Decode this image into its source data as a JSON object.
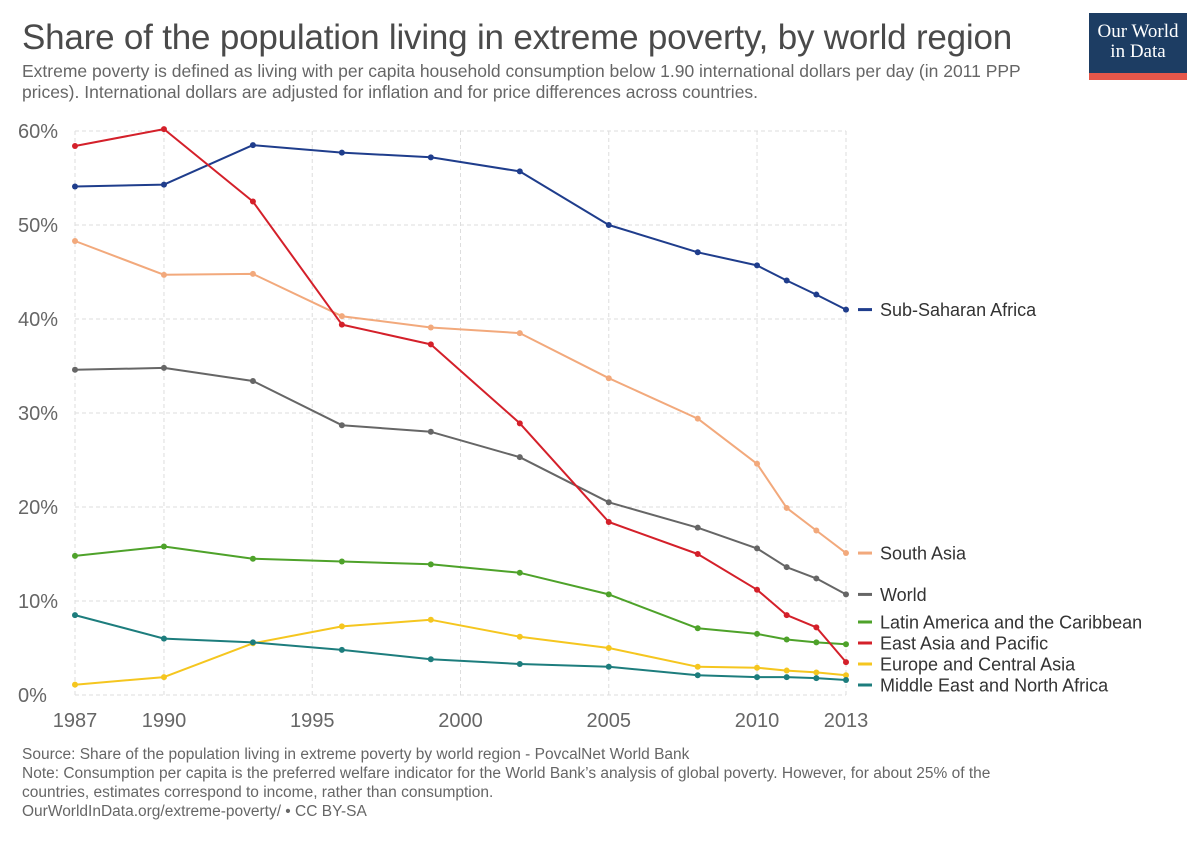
{
  "title": "Share of the population living in extreme poverty, by world region",
  "subtitle": "Extreme poverty is defined as living with per capita household consumption below 1.90 international dollars per day (in 2011 PPP prices). International dollars are adjusted for inflation and for price differences across countries.",
  "logo": {
    "line1": "Our World",
    "line2": "in Data"
  },
  "footer": {
    "source": "Source: Share of the population living in extreme poverty by world region - PovcalNet World Bank",
    "note_line1": "Note: Consumption per capita is the preferred welfare indicator for the World Bank’s analysis of global poverty. However, for about 25% of the",
    "note_line2": "countries, estimates correspond to income, rather than consumption.",
    "url": "OurWorldInData.org/extreme-poverty/ • CC BY-SA"
  },
  "chart_data": {
    "type": "line",
    "xlim": [
      1987,
      2013
    ],
    "ylim": [
      0,
      60
    ],
    "x_ticks": [
      1987,
      1990,
      1995,
      2000,
      2005,
      2010,
      2013
    ],
    "y_ticks": [
      0,
      10,
      20,
      30,
      40,
      50,
      60
    ],
    "y_tick_labels": [
      "0%",
      "10%",
      "20%",
      "30%",
      "40%",
      "50%",
      "60%"
    ],
    "grid": true,
    "legend_position": "right, labels at line ends",
    "series": [
      {
        "name": "Sub-Saharan Africa",
        "color": "#1f3d8c",
        "x": [
          1987,
          1990,
          1993,
          1996,
          1999,
          2002,
          2005,
          2008,
          2010,
          2011,
          2012,
          2013
        ],
        "y": [
          54.1,
          54.3,
          58.5,
          57.7,
          57.2,
          55.7,
          50.0,
          47.1,
          45.7,
          44.1,
          42.6,
          41.0
        ]
      },
      {
        "name": "South Asia",
        "color": "#f2a97c",
        "x": [
          1987,
          1990,
          1993,
          1996,
          1999,
          2002,
          2005,
          2008,
          2010,
          2011,
          2012,
          2013
        ],
        "y": [
          48.3,
          44.7,
          44.8,
          40.3,
          39.1,
          38.5,
          33.7,
          29.4,
          24.6,
          19.9,
          17.5,
          15.1
        ]
      },
      {
        "name": "World",
        "color": "#666666",
        "x": [
          1987,
          1990,
          1993,
          1996,
          1999,
          2002,
          2005,
          2008,
          2010,
          2011,
          2012,
          2013
        ],
        "y": [
          34.6,
          34.8,
          33.4,
          28.7,
          28.0,
          25.3,
          20.5,
          17.8,
          15.6,
          13.6,
          12.4,
          10.7
        ]
      },
      {
        "name": "Latin America and the Caribbean",
        "color": "#4ea22a",
        "x": [
          1987,
          1990,
          1993,
          1996,
          1999,
          2002,
          2005,
          2008,
          2010,
          2011,
          2012,
          2013
        ],
        "y": [
          14.8,
          15.8,
          14.5,
          14.2,
          13.9,
          13.0,
          10.7,
          7.1,
          6.5,
          5.9,
          5.6,
          5.4
        ]
      },
      {
        "name": "East Asia and Pacific",
        "color": "#d4202a",
        "x": [
          1987,
          1990,
          1993,
          1996,
          1999,
          2002,
          2005,
          2008,
          2010,
          2011,
          2012,
          2013
        ],
        "y": [
          58.4,
          60.2,
          52.5,
          39.4,
          37.3,
          28.9,
          18.4,
          15.0,
          11.2,
          8.5,
          7.2,
          3.5
        ]
      },
      {
        "name": "Europe and Central Asia",
        "color": "#f5c61f",
        "x": [
          1987,
          1990,
          1993,
          1996,
          1999,
          2002,
          2005,
          2008,
          2010,
          2011,
          2012,
          2013
        ],
        "y": [
          1.1,
          1.9,
          5.5,
          7.3,
          8.0,
          6.2,
          5.0,
          3.0,
          2.9,
          2.6,
          2.4,
          2.1
        ]
      },
      {
        "name": "Middle East and North Africa",
        "color": "#1d7d7d",
        "x": [
          1987,
          1990,
          1993,
          1996,
          1999,
          2002,
          2005,
          2008,
          2010,
          2011,
          2012,
          2013
        ],
        "y": [
          8.5,
          6.0,
          5.6,
          4.8,
          3.8,
          3.3,
          3.0,
          2.1,
          1.9,
          1.9,
          1.8,
          1.6
        ]
      }
    ]
  }
}
